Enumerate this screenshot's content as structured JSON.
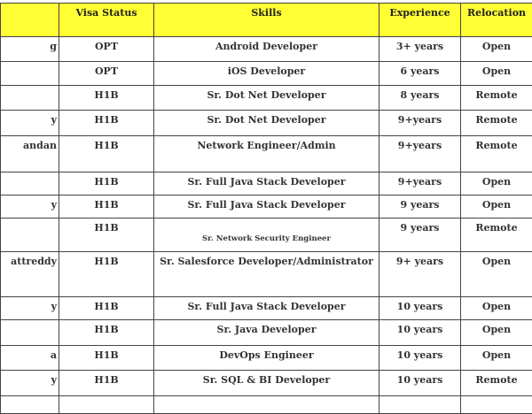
{
  "headers": [
    "",
    "Visa Status",
    "Skills",
    "Experience",
    "Relocation"
  ],
  "rows": [
    {
      "name": "g",
      "visa": "OPT",
      "skills": "Android Developer",
      "experience": "3+ years",
      "relocation": "Open"
    },
    {
      "name": "",
      "visa": "OPT",
      "skills": "iOS Developer",
      "experience": "6 years",
      "relocation": "Open"
    },
    {
      "name": "",
      "visa": "H1B",
      "skills": "Sr. Dot Net Developer",
      "experience": "8 years",
      "relocation": "Remote"
    },
    {
      "name": "y",
      "visa": "H1B",
      "skills": "Sr. Dot Net Developer",
      "experience": "9+years",
      "relocation": "Remote"
    },
    {
      "name": "andan",
      "visa": "H1B",
      "skills": "Network Engineer/Admin",
      "experience": "9+years",
      "relocation": "Remote"
    },
    {
      "name": "",
      "visa": "H1B",
      "skills": "Sr. Full Java Stack Developer",
      "experience": "9+years",
      "relocation": "Open"
    },
    {
      "name": "y",
      "visa": "H1B",
      "skills": "Sr. Full Java Stack Developer",
      "experience": "9 years",
      "relocation": "Open"
    },
    {
      "name": "",
      "visa": "H1B",
      "skills": "Sr. Network Security Engineer",
      "experience": "9 years",
      "relocation": "Remote"
    },
    {
      "name": "attreddy",
      "visa": "H1B",
      "skills": "Sr. Salesforce Developer/Administrator",
      "experience": "9+ years",
      "relocation": "Open"
    },
    {
      "name": "y",
      "visa": "H1B",
      "skills": "Sr. Full Java Stack Developer",
      "experience": "10 years",
      "relocation": "Open"
    },
    {
      "name": "",
      "visa": "H1B",
      "skills": "Sr. Java Developer",
      "experience": "10 years",
      "relocation": "Open"
    },
    {
      "name": "a",
      "visa": "H1B",
      "skills": "DevOps Engineer",
      "experience": "10 years",
      "relocation": "Open"
    },
    {
      "name": "y",
      "visa": "H1B",
      "skills": "Sr. SQL & BI Developer",
      "experience": "10 years",
      "relocation": "Remote"
    },
    {
      "name": "",
      "visa": "",
      "skills": "",
      "experience": "",
      "relocation": ""
    }
  ]
}
